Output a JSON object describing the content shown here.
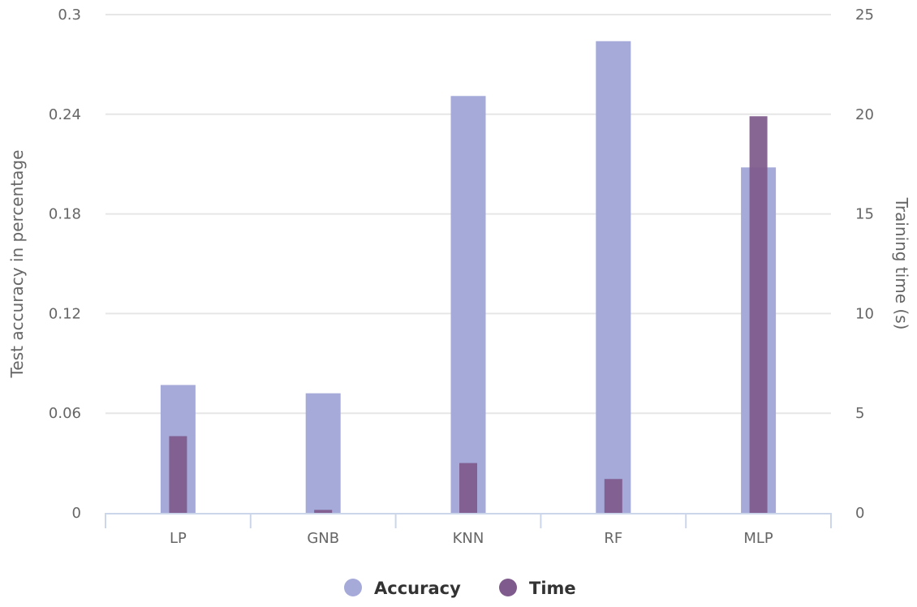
{
  "chart_data": {
    "type": "bar",
    "title": "",
    "categories": [
      "LP",
      "GNB",
      "KNN",
      "RF",
      "MLP"
    ],
    "series": [
      {
        "name": "Accuracy",
        "axis": "left",
        "color": "#a5aad9",
        "values": [
          0.077,
          0.072,
          0.251,
          0.284,
          0.208
        ]
      },
      {
        "name": "Time",
        "axis": "right",
        "color": "#7f5a8c",
        "values": [
          3.85,
          0.15,
          2.5,
          1.7,
          19.9
        ]
      }
    ],
    "ylabel": "Test accuracy in percentage",
    "ylabel_right": "Training time (s)",
    "ylim": [
      0,
      0.3
    ],
    "ylim_right": [
      0,
      25
    ],
    "y_ticks": [
      "0",
      "0.06",
      "0.12",
      "0.18",
      "0.24",
      "0.3"
    ],
    "y_ticks_right": [
      "0",
      "5",
      "10",
      "15",
      "20",
      "25"
    ],
    "grid": true,
    "legend": "bottom-center"
  }
}
